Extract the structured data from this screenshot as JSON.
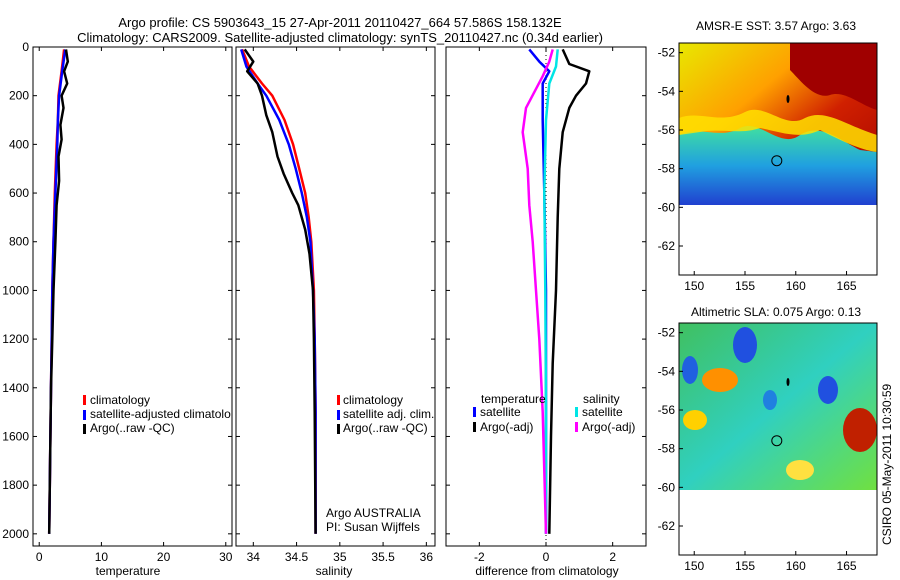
{
  "header": {
    "line1": "Argo profile: CS 5903643_15 27-Apr-2011 20110427_664 57.586S 158.132E",
    "line2": "Climatology: CARS2009. Satellite-adjusted climatology: synTS_20110427.nc (0.34d earlier)"
  },
  "side_stamp": "CSIRO 05-May-2011 10:30:59",
  "colors": {
    "climatology": "#ff0000",
    "satellite": "#0000ff",
    "argo": "#000000",
    "salinity_satellite": "#00e5e5",
    "salinity_argo": "#ff00ff"
  },
  "chart_data": [
    {
      "type": "line",
      "xlabel": "temperature",
      "xlim": [
        -1,
        31
      ],
      "ylim": [
        2050,
        0
      ],
      "xticks": [
        0,
        10,
        20,
        30
      ],
      "yticks": [
        0,
        200,
        400,
        600,
        800,
        1000,
        1200,
        1400,
        1600,
        1800,
        2000
      ],
      "legend": [
        "climatology",
        "satellite-adjusted climatolo",
        "Argo(..raw -QC)"
      ],
      "series": [
        {
          "name": "climatology",
          "color": "#ff0000",
          "points": [
            [
              4.0,
              10
            ],
            [
              3.6,
              100
            ],
            [
              3.1,
              200
            ],
            [
              3.0,
              300
            ],
            [
              2.8,
              400
            ],
            [
              2.5,
              600
            ],
            [
              2.3,
              800
            ],
            [
              2.1,
              1000
            ],
            [
              2.0,
              1200
            ],
            [
              1.9,
              1400
            ],
            [
              1.8,
              1600
            ],
            [
              1.7,
              1800
            ],
            [
              1.6,
              2000
            ]
          ]
        },
        {
          "name": "satellite-adjusted climatolo",
          "color": "#0000ff",
          "points": [
            [
              4.2,
              10
            ],
            [
              3.7,
              100
            ],
            [
              3.2,
              200
            ],
            [
              3.0,
              300
            ],
            [
              2.9,
              400
            ],
            [
              2.6,
              600
            ],
            [
              2.3,
              800
            ],
            [
              2.1,
              1000
            ],
            [
              2.0,
              1200
            ],
            [
              1.9,
              1400
            ],
            [
              1.8,
              1600
            ],
            [
              1.7,
              1800
            ],
            [
              1.6,
              2000
            ]
          ]
        },
        {
          "name": "Argo(..raw -QC)",
          "color": "#000000",
          "points": [
            [
              4.3,
              10
            ],
            [
              4.6,
              60
            ],
            [
              4.0,
              100
            ],
            [
              4.5,
              150
            ],
            [
              3.6,
              200
            ],
            [
              3.9,
              250
            ],
            [
              3.4,
              320
            ],
            [
              3.6,
              380
            ],
            [
              3.1,
              450
            ],
            [
              3.2,
              550
            ],
            [
              2.8,
              650
            ],
            [
              2.6,
              800
            ],
            [
              2.3,
              1000
            ],
            [
              2.1,
              1200
            ],
            [
              1.9,
              1400
            ],
            [
              1.8,
              1600
            ],
            [
              1.7,
              1800
            ],
            [
              1.6,
              2000
            ]
          ]
        }
      ]
    },
    {
      "type": "line",
      "xlabel": "salinity",
      "xlim": [
        33.8,
        36.1
      ],
      "ylim": [
        2050,
        0
      ],
      "xticks": [
        34,
        34.5,
        35,
        35.5,
        36
      ],
      "legend": [
        "climatology",
        "satellite adj. clim.",
        "Argo(..raw -QC)"
      ],
      "annotation": [
        "Argo AUSTRALIA",
        "PI: Susan Wijffels"
      ],
      "series": [
        {
          "name": "climatology",
          "color": "#ff0000",
          "points": [
            [
              33.87,
              10
            ],
            [
              33.95,
              80
            ],
            [
              34.1,
              150
            ],
            [
              34.22,
              200
            ],
            [
              34.36,
              300
            ],
            [
              34.46,
              400
            ],
            [
              34.53,
              500
            ],
            [
              34.6,
              600
            ],
            [
              34.64,
              700
            ],
            [
              34.67,
              800
            ],
            [
              34.7,
              1000
            ],
            [
              34.71,
              1200
            ],
            [
              34.72,
              1500
            ],
            [
              34.72,
              2000
            ]
          ]
        },
        {
          "name": "satellite adj. clim.",
          "color": "#0000ff",
          "points": [
            [
              33.86,
              10
            ],
            [
              33.92,
              80
            ],
            [
              34.05,
              150
            ],
            [
              34.15,
              200
            ],
            [
              34.3,
              300
            ],
            [
              34.41,
              400
            ],
            [
              34.49,
              500
            ],
            [
              34.56,
              600
            ],
            [
              34.62,
              700
            ],
            [
              34.66,
              800
            ],
            [
              34.69,
              1000
            ],
            [
              34.71,
              1200
            ],
            [
              34.72,
              1500
            ],
            [
              34.72,
              2000
            ]
          ]
        },
        {
          "name": "Argo(..raw -QC)",
          "color": "#000000",
          "points": [
            [
              33.9,
              10
            ],
            [
              34.0,
              60
            ],
            [
              33.93,
              100
            ],
            [
              34.05,
              150
            ],
            [
              34.1,
              200
            ],
            [
              34.15,
              280
            ],
            [
              34.22,
              350
            ],
            [
              34.28,
              450
            ],
            [
              34.35,
              520
            ],
            [
              34.45,
              600
            ],
            [
              34.52,
              650
            ],
            [
              34.6,
              750
            ],
            [
              34.65,
              850
            ],
            [
              34.69,
              1000
            ],
            [
              34.7,
              1200
            ],
            [
              34.71,
              1500
            ],
            [
              34.72,
              2000
            ]
          ]
        }
      ]
    },
    {
      "type": "line",
      "xlabel": "difference from climatology",
      "xlim": [
        -3,
        3
      ],
      "ylim": [
        2050,
        0
      ],
      "xticks": [
        -2,
        0,
        2
      ],
      "legend_groups": [
        {
          "title": "temperature",
          "items": [
            "satellite",
            "Argo(-adj)"
          ]
        },
        {
          "title": "salinity",
          "items": [
            "satellite",
            "Argo(-adj)"
          ]
        }
      ],
      "series": [
        {
          "name": "satellite",
          "group": "temperature",
          "color": "#0000ff",
          "points": [
            [
              -0.5,
              10
            ],
            [
              -0.2,
              60
            ],
            [
              0.1,
              100
            ],
            [
              -0.1,
              150
            ],
            [
              -0.1,
              300
            ],
            [
              -0.05,
              600
            ],
            [
              0,
              1000
            ],
            [
              0,
              1400
            ],
            [
              0,
              2000
            ]
          ]
        },
        {
          "name": "Argo(-adj)",
          "group": "temperature",
          "color": "#000000",
          "points": [
            [
              0.5,
              10
            ],
            [
              0.7,
              70
            ],
            [
              1.3,
              100
            ],
            [
              1.2,
              150
            ],
            [
              0.9,
              200
            ],
            [
              0.7,
              250
            ],
            [
              0.5,
              350
            ],
            [
              0.4,
              500
            ],
            [
              0.35,
              700
            ],
            [
              0.3,
              1000
            ],
            [
              0.2,
              1300
            ],
            [
              0.15,
              1600
            ],
            [
              0.1,
              2000
            ]
          ]
        },
        {
          "name": "satellite",
          "group": "salinity",
          "color": "#00e5e5",
          "points": [
            [
              0.35,
              10
            ],
            [
              0.3,
              80
            ],
            [
              0.1,
              150
            ],
            [
              0.0,
              300
            ],
            [
              -0.05,
              600
            ],
            [
              -0.02,
              1000
            ],
            [
              0,
              1500
            ],
            [
              0,
              2000
            ]
          ]
        },
        {
          "name": "Argo(-adj)",
          "group": "salinity",
          "color": "#ff00ff",
          "points": [
            [
              0.2,
              10
            ],
            [
              0.1,
              60
            ],
            [
              -0.1,
              120
            ],
            [
              -0.6,
              250
            ],
            [
              -0.7,
              350
            ],
            [
              -0.55,
              500
            ],
            [
              -0.5,
              650
            ],
            [
              -0.4,
              800
            ],
            [
              -0.3,
              1000
            ],
            [
              -0.2,
              1200
            ],
            [
              -0.1,
              1500
            ],
            [
              0,
              2000
            ]
          ]
        }
      ]
    },
    {
      "type": "heatmap",
      "title": "AMSR-E SST: 3.57 Argo: 3.63",
      "xlim": [
        148.5,
        168
      ],
      "ylim": [
        -63.5,
        -51.5
      ],
      "xticks": [
        150,
        155,
        160,
        165
      ],
      "yticks": [
        -52,
        -54,
        -56,
        -58,
        -60,
        -62
      ],
      "float_position": [
        158.132,
        -57.586
      ]
    },
    {
      "type": "heatmap",
      "title": "Altimetric SLA: 0.075 Argo: 0.13",
      "xlim": [
        148.5,
        168
      ],
      "ylim": [
        -63.5,
        -51.5
      ],
      "xticks": [
        150,
        155,
        160,
        165
      ],
      "yticks": [
        -52,
        -54,
        -56,
        -58,
        -60,
        -62
      ],
      "float_position": [
        158.132,
        -57.586
      ]
    }
  ]
}
